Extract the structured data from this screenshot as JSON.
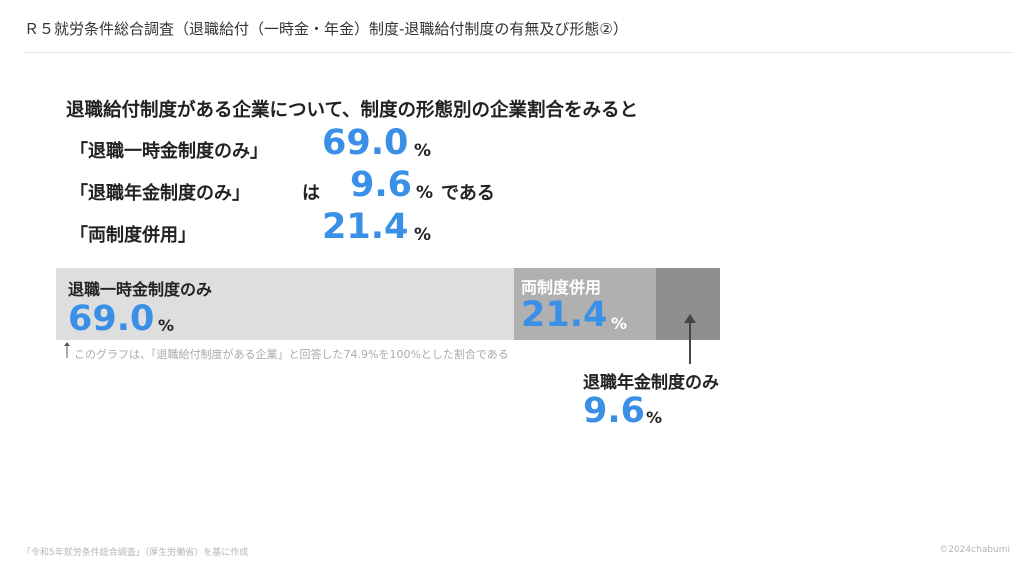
{
  "header": {
    "title": "Ｒ５就労条件総合調査（退職給付（一時金・年金）制度-退職給付制度の有無及び形態②）"
  },
  "summary": {
    "lead": "退職給付制度がある企業について、制度の形態別の企業割合をみると",
    "rows": [
      {
        "label": "「退職一時金制度のみ」",
        "value": "69.0",
        "unit": "%"
      },
      {
        "label": "「退職年金制度のみ」",
        "value": "9.6",
        "unit": "%"
      },
      {
        "label": "「両制度併用」",
        "value": "21.4",
        "unit": "%"
      }
    ],
    "particle": "は",
    "ending": "である"
  },
  "chart_data": {
    "type": "bar",
    "orientation": "horizontal-stacked",
    "categories": [
      "退職一時金制度のみ",
      "両制度併用",
      "退職年金制度のみ"
    ],
    "values": [
      69.0,
      21.4,
      9.6
    ],
    "unit": "%",
    "total": 100,
    "colors": [
      "#dedede",
      "#b0b0b0",
      "#8f8f8f"
    ],
    "value_color": "#3a8fe6"
  },
  "bar_labels": {
    "lump": {
      "label": "退職一時金制度のみ",
      "value": "69.0",
      "unit": "%"
    },
    "both": {
      "label": "両制度併用",
      "value": "21.4",
      "unit": "%"
    },
    "pension": {
      "label": "退職年金制度のみ",
      "value": "9.6",
      "unit": "%"
    }
  },
  "note": "このグラフは、「退職給付制度がある企業」と回答した74.9%を100%とした割合である",
  "footer": {
    "source": "「令和5年就労条件総合調査」（厚生労働省）を基に作成",
    "copyright": "©2024chabumi"
  }
}
